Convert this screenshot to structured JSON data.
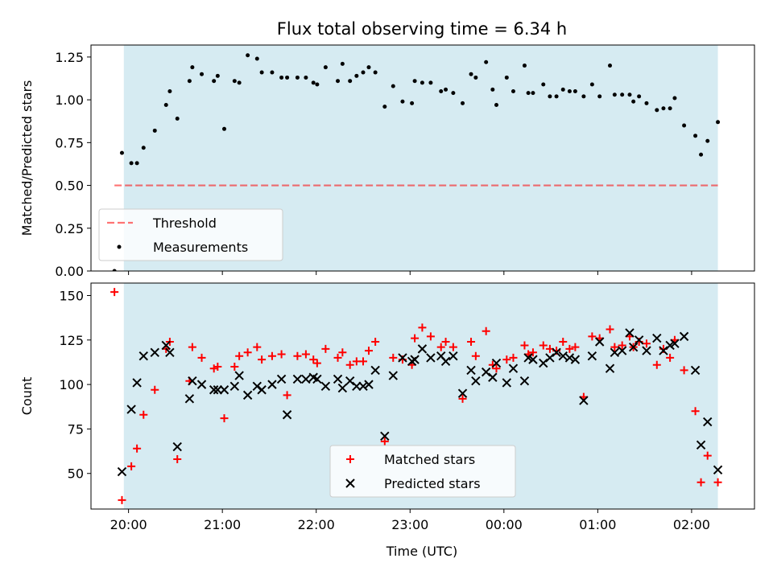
{
  "title": "Flux total observing time = 6.34 h",
  "xlabel": "Time (UTC)",
  "x_ticks": [
    "20:00",
    "21:00",
    "22:00",
    "23:00",
    "00:00",
    "01:00",
    "02:00"
  ],
  "colors": {
    "shade": "#add8e6",
    "threshold": "#ff0000",
    "matched": "#ff0000",
    "predicted": "#000000",
    "measurement": "#000000"
  },
  "chart_data": [
    {
      "type": "scatter",
      "ylabel": "Matched/Predicted stars",
      "ylim": [
        0,
        1.32
      ],
      "yticks": [
        0.0,
        0.25,
        0.5,
        0.75,
        1.0,
        1.25
      ],
      "ytick_labels": [
        "0.00",
        "0.25",
        "0.50",
        "0.75",
        "1.00",
        "1.25"
      ],
      "xlim_hours": [
        19.6,
        26.67
      ],
      "shade_hours": [
        19.95,
        26.28
      ],
      "legend_location": "lower left",
      "threshold": {
        "name": "Threshold",
        "y": 0.5,
        "x_hours": [
          19.85,
          26.28
        ]
      },
      "series": [
        {
          "name": "Measurements",
          "points": [
            [
              19.85,
              0.0
            ],
            [
              19.93,
              0.69
            ],
            [
              20.03,
              0.63
            ],
            [
              20.09,
              0.63
            ],
            [
              20.16,
              0.72
            ],
            [
              20.28,
              0.82
            ],
            [
              20.4,
              0.97
            ],
            [
              20.44,
              1.05
            ],
            [
              20.52,
              0.89
            ],
            [
              20.65,
              1.11
            ],
            [
              20.68,
              1.19
            ],
            [
              20.78,
              1.15
            ],
            [
              20.91,
              1.11
            ],
            [
              20.95,
              1.14
            ],
            [
              21.02,
              0.83
            ],
            [
              21.13,
              1.11
            ],
            [
              21.18,
              1.1
            ],
            [
              21.27,
              1.26
            ],
            [
              21.37,
              1.24
            ],
            [
              21.42,
              1.16
            ],
            [
              21.53,
              1.16
            ],
            [
              21.63,
              1.13
            ],
            [
              21.69,
              1.13
            ],
            [
              21.8,
              1.13
            ],
            [
              21.89,
              1.13
            ],
            [
              21.97,
              1.1
            ],
            [
              22.01,
              1.09
            ],
            [
              22.1,
              1.19
            ],
            [
              22.23,
              1.11
            ],
            [
              22.28,
              1.21
            ],
            [
              22.36,
              1.11
            ],
            [
              22.43,
              1.14
            ],
            [
              22.5,
              1.16
            ],
            [
              22.56,
              1.19
            ],
            [
              22.63,
              1.16
            ],
            [
              22.73,
              0.96
            ],
            [
              22.82,
              1.08
            ],
            [
              22.92,
              0.99
            ],
            [
              23.02,
              0.98
            ],
            [
              23.05,
              1.11
            ],
            [
              23.13,
              1.1
            ],
            [
              23.22,
              1.1
            ],
            [
              23.33,
              1.05
            ],
            [
              23.38,
              1.06
            ],
            [
              23.46,
              1.04
            ],
            [
              23.56,
              0.98
            ],
            [
              23.65,
              1.15
            ],
            [
              23.7,
              1.13
            ],
            [
              23.81,
              1.22
            ],
            [
              23.88,
              1.06
            ],
            [
              23.92,
              0.97
            ],
            [
              24.03,
              1.13
            ],
            [
              24.1,
              1.05
            ],
            [
              24.22,
              1.2
            ],
            [
              24.26,
              1.04
            ],
            [
              24.31,
              1.04
            ],
            [
              24.42,
              1.09
            ],
            [
              24.49,
              1.02
            ],
            [
              24.56,
              1.02
            ],
            [
              24.63,
              1.06
            ],
            [
              24.7,
              1.05
            ],
            [
              24.76,
              1.05
            ],
            [
              24.85,
              1.02
            ],
            [
              24.94,
              1.09
            ],
            [
              25.02,
              1.02
            ],
            [
              25.13,
              1.2
            ],
            [
              25.18,
              1.03
            ],
            [
              25.26,
              1.03
            ],
            [
              25.34,
              1.03
            ],
            [
              25.38,
              0.99
            ],
            [
              25.44,
              1.02
            ],
            [
              25.52,
              0.98
            ],
            [
              25.63,
              0.94
            ],
            [
              25.7,
              0.95
            ],
            [
              25.77,
              0.95
            ],
            [
              25.82,
              1.01
            ],
            [
              25.92,
              0.85
            ],
            [
              26.04,
              0.79
            ],
            [
              26.1,
              0.68
            ],
            [
              26.17,
              0.76
            ],
            [
              26.28,
              0.87
            ]
          ]
        }
      ]
    },
    {
      "type": "scatter",
      "ylabel": "Count",
      "ylim": [
        30,
        157
      ],
      "yticks": [
        50,
        75,
        100,
        125,
        150
      ],
      "ytick_labels": [
        "50",
        "75",
        "100",
        "125",
        "150"
      ],
      "xlim_hours": [
        19.6,
        26.67
      ],
      "shade_hours": [
        19.95,
        26.28
      ],
      "legend_location": "lower center",
      "series": [
        {
          "name": "Matched stars",
          "marker": "plus",
          "points": [
            [
              19.85,
              152
            ],
            [
              19.93,
              35
            ],
            [
              20.03,
              54
            ],
            [
              20.09,
              64
            ],
            [
              20.16,
              83
            ],
            [
              20.28,
              97
            ],
            [
              20.4,
              120
            ],
            [
              20.44,
              124
            ],
            [
              20.52,
              58
            ],
            [
              20.65,
              102
            ],
            [
              20.68,
              121
            ],
            [
              20.78,
              115
            ],
            [
              20.91,
              109
            ],
            [
              20.95,
              110
            ],
            [
              21.02,
              81
            ],
            [
              21.13,
              110
            ],
            [
              21.18,
              116
            ],
            [
              21.27,
              118
            ],
            [
              21.37,
              121
            ],
            [
              21.42,
              114
            ],
            [
              21.53,
              116
            ],
            [
              21.63,
              117
            ],
            [
              21.69,
              94
            ],
            [
              21.8,
              116
            ],
            [
              21.89,
              117
            ],
            [
              21.97,
              114
            ],
            [
              22.01,
              112
            ],
            [
              22.1,
              120
            ],
            [
              22.23,
              115
            ],
            [
              22.28,
              118
            ],
            [
              22.36,
              111
            ],
            [
              22.43,
              113
            ],
            [
              22.5,
              113
            ],
            [
              22.56,
              119
            ],
            [
              22.63,
              124
            ],
            [
              22.73,
              68
            ],
            [
              22.82,
              115
            ],
            [
              22.92,
              114
            ],
            [
              23.02,
              111
            ],
            [
              23.05,
              126
            ],
            [
              23.13,
              132
            ],
            [
              23.22,
              127
            ],
            [
              23.33,
              121
            ],
            [
              23.38,
              124
            ],
            [
              23.46,
              121
            ],
            [
              23.56,
              92
            ],
            [
              23.65,
              124
            ],
            [
              23.7,
              116
            ],
            [
              23.81,
              130
            ],
            [
              23.88,
              111
            ],
            [
              23.92,
              109
            ],
            [
              24.03,
              114
            ],
            [
              24.1,
              115
            ],
            [
              24.22,
              122
            ],
            [
              24.26,
              117
            ],
            [
              24.31,
              118
            ],
            [
              24.42,
              122
            ],
            [
              24.49,
              120
            ],
            [
              24.56,
              119
            ],
            [
              24.63,
              124
            ],
            [
              24.7,
              120
            ],
            [
              24.76,
              121
            ],
            [
              24.85,
              93
            ],
            [
              24.94,
              127
            ],
            [
              25.02,
              126
            ],
            [
              25.13,
              131
            ],
            [
              25.18,
              121
            ],
            [
              25.26,
              122
            ],
            [
              25.34,
              127
            ],
            [
              25.38,
              121
            ],
            [
              25.44,
              124
            ],
            [
              25.52,
              123
            ],
            [
              25.63,
              111
            ],
            [
              25.7,
              120
            ],
            [
              25.77,
              115
            ],
            [
              25.82,
              125
            ],
            [
              25.92,
              108
            ],
            [
              26.04,
              85
            ],
            [
              26.1,
              45
            ],
            [
              26.17,
              60
            ],
            [
              26.28,
              45
            ]
          ]
        },
        {
          "name": "Predicted stars",
          "marker": "x",
          "points": [
            [
              19.93,
              51
            ],
            [
              20.03,
              86
            ],
            [
              20.09,
              101
            ],
            [
              20.16,
              116
            ],
            [
              20.28,
              118
            ],
            [
              20.4,
              122
            ],
            [
              20.44,
              118
            ],
            [
              20.52,
              65
            ],
            [
              20.65,
              92
            ],
            [
              20.68,
              102
            ],
            [
              20.78,
              100
            ],
            [
              20.91,
              97
            ],
            [
              20.95,
              97
            ],
            [
              21.02,
              97
            ],
            [
              21.13,
              99
            ],
            [
              21.18,
              105
            ],
            [
              21.27,
              94
            ],
            [
              21.37,
              99
            ],
            [
              21.42,
              97
            ],
            [
              21.53,
              100
            ],
            [
              21.63,
              103
            ],
            [
              21.69,
              83
            ],
            [
              21.8,
              103
            ],
            [
              21.89,
              103
            ],
            [
              21.97,
              104
            ],
            [
              22.01,
              103
            ],
            [
              22.1,
              99
            ],
            [
              22.23,
              103
            ],
            [
              22.28,
              98
            ],
            [
              22.36,
              102
            ],
            [
              22.43,
              99
            ],
            [
              22.5,
              99
            ],
            [
              22.56,
              100
            ],
            [
              22.63,
              108
            ],
            [
              22.73,
              71
            ],
            [
              22.82,
              105
            ],
            [
              22.92,
              115
            ],
            [
              23.02,
              113
            ],
            [
              23.05,
              114
            ],
            [
              23.13,
              120
            ],
            [
              23.22,
              115
            ],
            [
              23.33,
              116
            ],
            [
              23.38,
              113
            ],
            [
              23.46,
              116
            ],
            [
              23.56,
              95
            ],
            [
              23.65,
              108
            ],
            [
              23.7,
              102
            ],
            [
              23.81,
              107
            ],
            [
              23.88,
              104
            ],
            [
              23.92,
              112
            ],
            [
              24.03,
              101
            ],
            [
              24.1,
              109
            ],
            [
              24.22,
              102
            ],
            [
              24.26,
              115
            ],
            [
              24.31,
              114
            ],
            [
              24.42,
              112
            ],
            [
              24.49,
              115
            ],
            [
              24.56,
              118
            ],
            [
              24.63,
              116
            ],
            [
              24.7,
              115
            ],
            [
              24.76,
              114
            ],
            [
              24.85,
              91
            ],
            [
              24.94,
              116
            ],
            [
              25.02,
              124
            ],
            [
              25.13,
              109
            ],
            [
              25.18,
              118
            ],
            [
              25.26,
              119
            ],
            [
              25.34,
              129
            ],
            [
              25.38,
              121
            ],
            [
              25.44,
              125
            ],
            [
              25.52,
              119
            ],
            [
              25.63,
              126
            ],
            [
              25.7,
              119
            ],
            [
              25.77,
              122
            ],
            [
              25.82,
              123
            ],
            [
              25.92,
              127
            ],
            [
              26.04,
              108
            ],
            [
              26.1,
              66
            ],
            [
              26.17,
              79
            ],
            [
              26.28,
              52
            ]
          ]
        }
      ]
    }
  ]
}
